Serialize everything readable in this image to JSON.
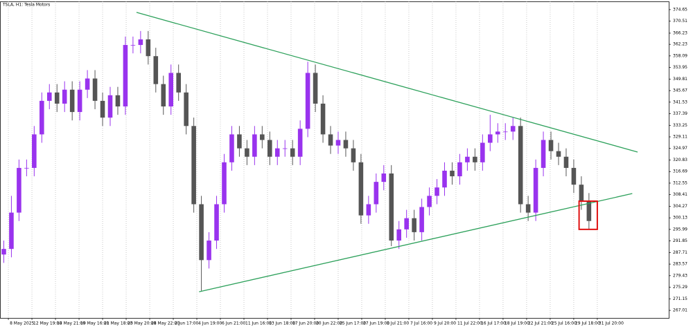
{
  "chart_data": {
    "type": "candlestick",
    "title": "TSLA, H1: Tesla Motors",
    "open": [
      287,
      289,
      302,
      318,
      318,
      330,
      342,
      345,
      341,
      346,
      338,
      346,
      350,
      342,
      336,
      344,
      340,
      362,
      362,
      364,
      358,
      348,
      340,
      352,
      345,
      333,
      305,
      285,
      292,
      305,
      320,
      330,
      325,
      322,
      330,
      328,
      322,
      325,
      325,
      322,
      332,
      352,
      341,
      330,
      326,
      328,
      325,
      320,
      301,
      305,
      313,
      316,
      292,
      296,
      300,
      295,
      304,
      308,
      311,
      317,
      315,
      320,
      322,
      320,
      327,
      330,
      331,
      331,
      333,
      305,
      302,
      318,
      328,
      324,
      322,
      318,
      312,
      306
    ],
    "high": [
      292,
      308,
      321,
      321,
      333,
      345,
      348,
      348,
      349,
      349,
      349,
      353,
      353,
      345,
      347,
      347,
      365,
      365,
      367,
      367,
      361,
      351,
      355,
      355,
      348,
      336,
      308,
      295,
      308,
      323,
      333,
      333,
      328,
      333,
      333,
      331,
      328,
      328,
      328,
      335,
      356,
      355,
      344,
      333,
      331,
      331,
      328,
      323,
      308,
      316,
      319,
      319,
      299,
      303,
      303,
      307,
      311,
      314,
      320,
      320,
      323,
      325,
      325,
      330,
      337,
      334,
      334,
      336,
      336,
      308,
      321,
      331,
      331,
      327,
      325,
      321,
      315,
      309
    ],
    "low": [
      284,
      286,
      299,
      315,
      315,
      327,
      339,
      338,
      338,
      335,
      335,
      343,
      339,
      333,
      333,
      337,
      337,
      359,
      359,
      355,
      345,
      337,
      337,
      342,
      330,
      302,
      274,
      282,
      289,
      302,
      317,
      322,
      319,
      319,
      325,
      319,
      319,
      322,
      319,
      319,
      329,
      338,
      327,
      323,
      323,
      322,
      317,
      298,
      298,
      302,
      310,
      290,
      289,
      293,
      292,
      292,
      301,
      305,
      308,
      312,
      312,
      317,
      317,
      317,
      324,
      327,
      328,
      328,
      302,
      299,
      299,
      315,
      321,
      319,
      315,
      309,
      303,
      296
    ],
    "close": [
      289,
      302,
      318,
      318,
      330,
      342,
      345,
      341,
      346,
      338,
      346,
      350,
      342,
      336,
      344,
      340,
      362,
      362,
      364,
      358,
      348,
      340,
      352,
      345,
      333,
      305,
      285,
      292,
      305,
      320,
      330,
      325,
      322,
      330,
      328,
      322,
      325,
      325,
      322,
      332,
      352,
      341,
      330,
      326,
      328,
      325,
      320,
      301,
      305,
      313,
      316,
      292,
      296,
      300,
      295,
      304,
      308,
      311,
      317,
      315,
      320,
      322,
      320,
      327,
      330,
      331,
      331,
      333,
      305,
      302,
      318,
      328,
      324,
      322,
      318,
      312,
      306,
      299
    ],
    "up_color": "#9933ee",
    "down_color": "#555555",
    "xlim": [
      -0.5,
      87.5
    ],
    "ylim": [
      264.3,
      377.6
    ],
    "yticks": [
      {
        "value": 374.65,
        "label": "374.65"
      },
      {
        "value": 370.51,
        "label": "370.51"
      },
      {
        "value": 366.23,
        "label": "366.23"
      },
      {
        "value": 362.23,
        "label": "362.23"
      },
      {
        "value": 358.09,
        "label": "358.09"
      },
      {
        "value": 353.95,
        "label": "353.95"
      },
      {
        "value": 349.81,
        "label": "349.81"
      },
      {
        "value": 345.67,
        "label": "345.67"
      },
      {
        "value": 341.53,
        "label": "341.53"
      },
      {
        "value": 337.39,
        "label": "337.39"
      },
      {
        "value": 333.25,
        "label": "333.25"
      },
      {
        "value": 329.11,
        "label": "329.11"
      },
      {
        "value": 324.97,
        "label": "324.97"
      },
      {
        "value": 320.83,
        "label": "320.83"
      },
      {
        "value": 316.69,
        "label": "316.69"
      },
      {
        "value": 312.55,
        "label": "312.55"
      },
      {
        "value": 308.41,
        "label": "308.41"
      },
      {
        "value": 304.27,
        "label": "304.27"
      },
      {
        "value": 300.13,
        "label": "300.13"
      },
      {
        "value": 295.99,
        "label": "295.99"
      },
      {
        "value": 291.85,
        "label": "291.85"
      },
      {
        "value": 287.71,
        "label": "287.71"
      },
      {
        "value": 283.57,
        "label": "283.57"
      },
      {
        "value": 279.43,
        "label": "279.43"
      },
      {
        "value": 275.29,
        "label": "275.29"
      },
      {
        "value": 271.15,
        "label": "271.15"
      },
      {
        "value": 267.01,
        "label": "267.01"
      }
    ],
    "xticks": [
      {
        "value": 0.6,
        "label": "8 May 2025"
      },
      {
        "value": 3.7,
        "label": "12 May 19:00"
      },
      {
        "value": 6.8,
        "label": "14 May 21:00"
      },
      {
        "value": 9.9,
        "label": "19 May 16:00"
      },
      {
        "value": 13.0,
        "label": "21 May 18:00"
      },
      {
        "value": 16.1,
        "label": "23 May 20:00"
      },
      {
        "value": 19.2,
        "label": "28 May 22:00"
      },
      {
        "value": 22.3,
        "label": "2 Jun 17:00"
      },
      {
        "value": 25.4,
        "label": "4 Jun 19:00"
      },
      {
        "value": 28.5,
        "label": "6 Jun 21:00"
      },
      {
        "value": 31.6,
        "label": "11 Jun 16:00"
      },
      {
        "value": 34.7,
        "label": "13 Jun 18:00"
      },
      {
        "value": 37.8,
        "label": "17 Jun 20:00"
      },
      {
        "value": 40.9,
        "label": "20 Jun 22:00"
      },
      {
        "value": 44.0,
        "label": "25 Jun 17:00"
      },
      {
        "value": 47.1,
        "label": "27 Jun 19:00"
      },
      {
        "value": 50.2,
        "label": "1 Jul 21:00"
      },
      {
        "value": 53.3,
        "label": "7 Jul 16:00"
      },
      {
        "value": 56.4,
        "label": "9 Jul 20:00"
      },
      {
        "value": 59.5,
        "label": "11 Jul 22:00"
      },
      {
        "value": 62.6,
        "label": "16 Jul 17:00"
      },
      {
        "value": 65.7,
        "label": "18 Jul 19:00"
      },
      {
        "value": 68.8,
        "label": "22 Jul 21:00"
      },
      {
        "value": 71.9,
        "label": "25 Jul 16:00"
      },
      {
        "value": 75.0,
        "label": "29 Jul 18:00"
      },
      {
        "value": 78.1,
        "label": "31 Jul 20:00"
      }
    ],
    "grid": true,
    "trend_lines": [
      {
        "x": [
          17.46,
          83.4
        ],
        "y": [
          373.66,
          323.67
        ],
        "color": "#2ca05a"
      },
      {
        "x": [
          25.7,
          82.7
        ],
        "y": [
          273.68,
          308.82
        ],
        "color": "#2ca05a"
      }
    ],
    "highlight_box": {
      "x": [
        75.7,
        78.1
      ],
      "y": [
        306.1,
        296.0
      ],
      "color": "#e01010"
    }
  }
}
